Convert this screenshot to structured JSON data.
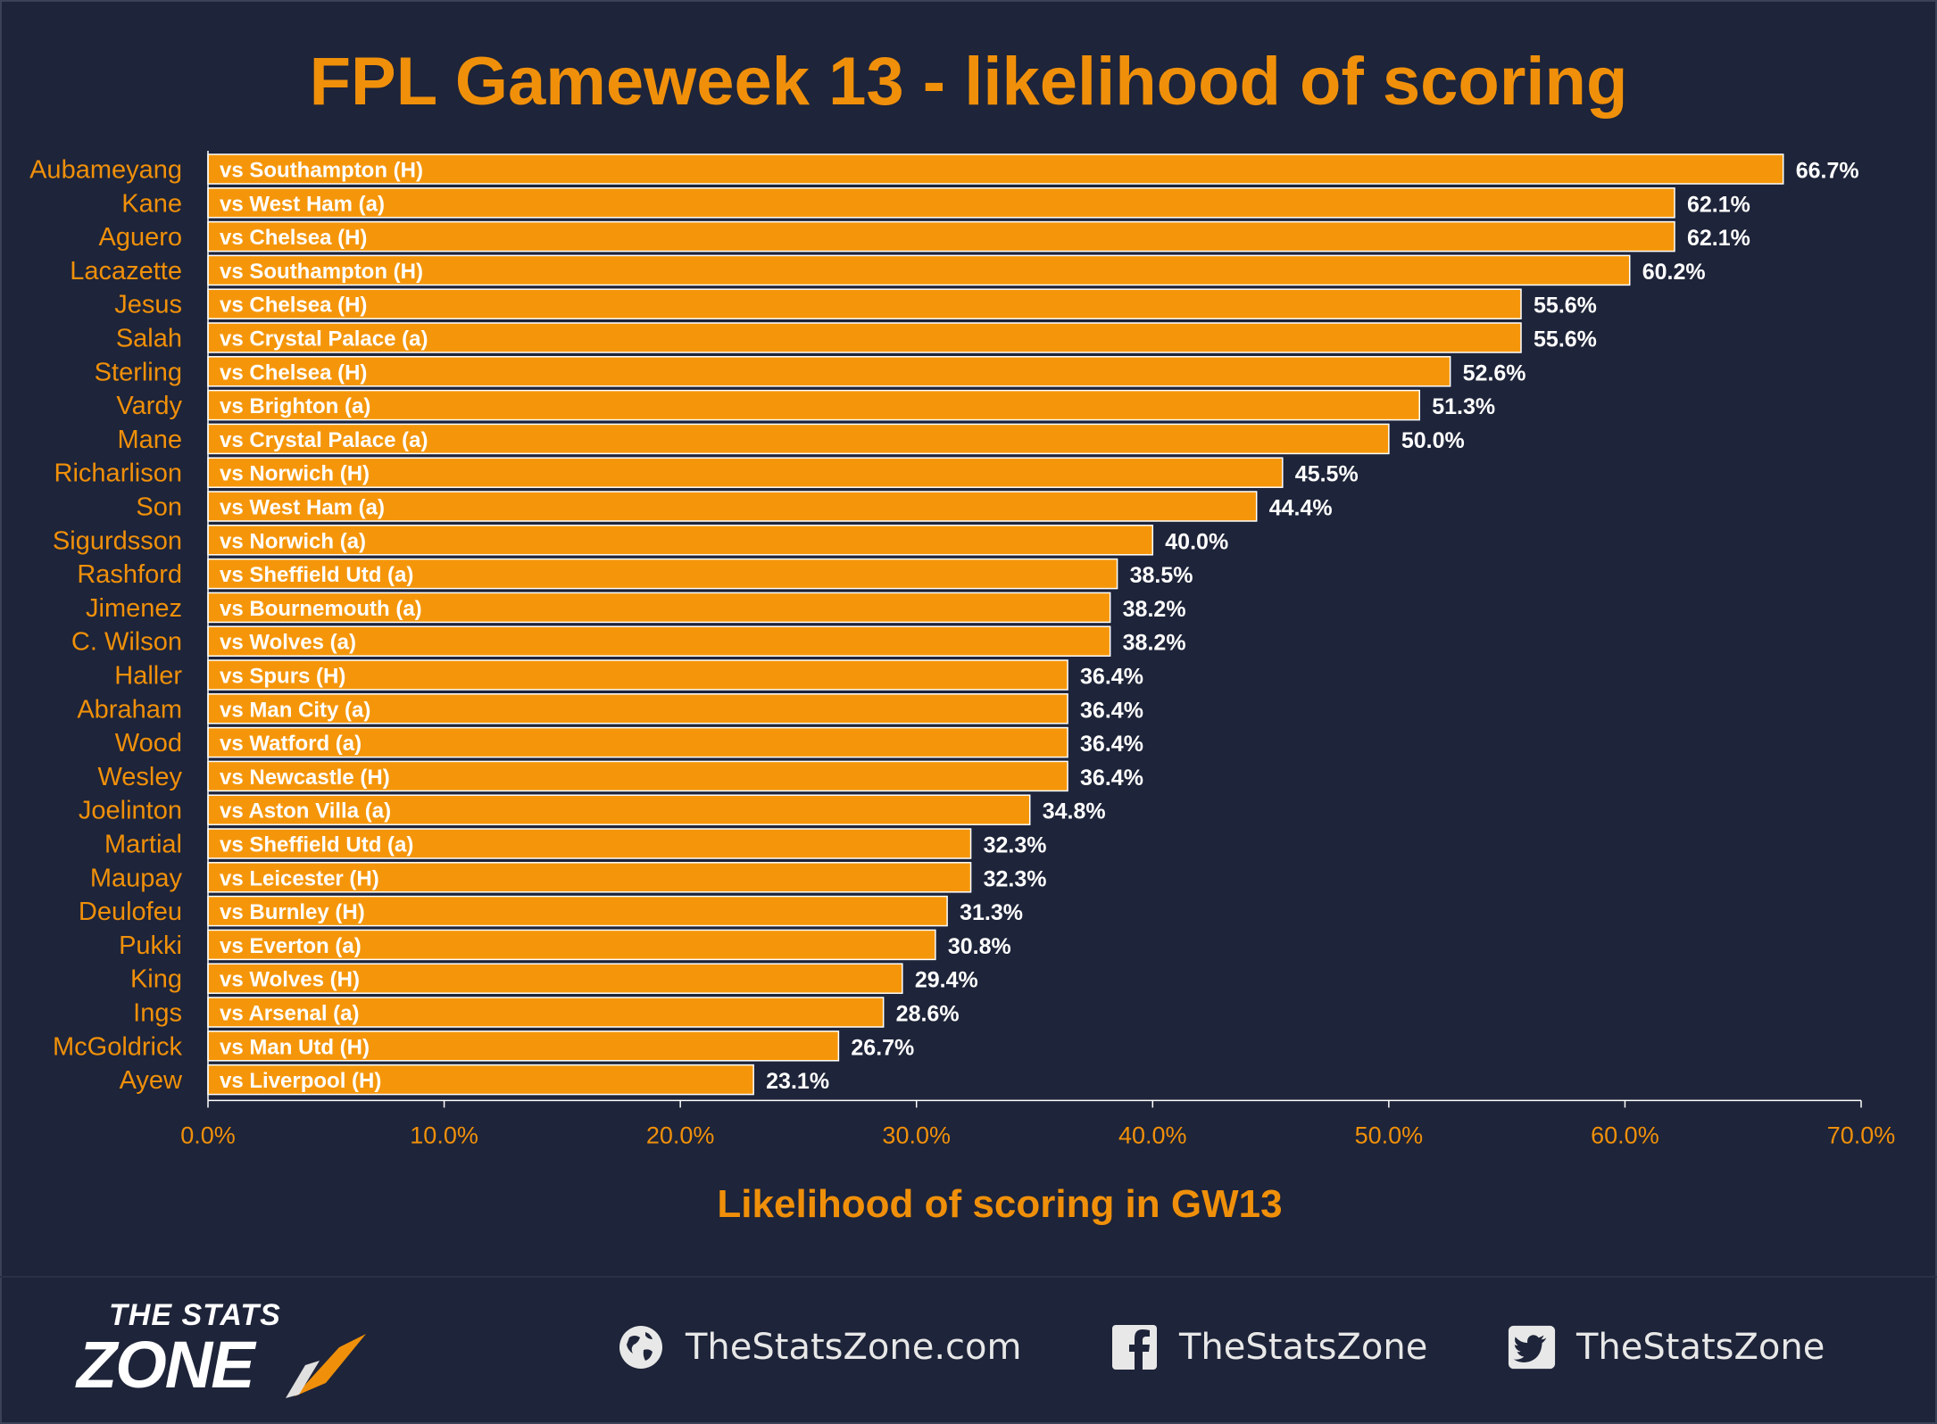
{
  "title": "FPL Gameweek 13 - likelihood of scoring",
  "chart_data": {
    "type": "bar",
    "orientation": "horizontal",
    "title": "FPL Gameweek 13 - likelihood of scoring",
    "xlabel": "Likelihood of scoring in GW13",
    "xlim": [
      0,
      70
    ],
    "xticks": [
      "0.0%",
      "10.0%",
      "20.0%",
      "30.0%",
      "40.0%",
      "50.0%",
      "60.0%",
      "70.0%"
    ],
    "grid": false,
    "bar_color": "#f5960a",
    "categories": [
      "Aubameyang",
      "Kane",
      "Aguero",
      "Lacazette",
      "Jesus",
      "Salah",
      "Sterling",
      "Vardy",
      "Mane",
      "Richarlison",
      "Son",
      "Sigurdsson",
      "Rashford",
      "Jimenez",
      "C. Wilson",
      "Haller",
      "Abraham",
      "Wood",
      "Wesley",
      "Joelinton",
      "Martial",
      "Maupay",
      "Deulofeu",
      "Pukki",
      "King",
      "Ings",
      "McGoldrick",
      "Ayew"
    ],
    "bar_labels": [
      "vs Southampton (H)",
      "vs West Ham (a)",
      "vs Chelsea (H)",
      "vs Southampton (H)",
      "vs Chelsea (H)",
      "vs Crystal Palace (a)",
      "vs Chelsea (H)",
      "vs Brighton (a)",
      "vs Crystal Palace (a)",
      "vs Norwich (H)",
      "vs West Ham (a)",
      "vs Norwich (a)",
      "vs Sheffield Utd (a)",
      "vs Bournemouth (a)",
      "vs Wolves (a)",
      "vs Spurs (H)",
      "vs Man City (a)",
      "vs Watford (a)",
      "vs Newcastle (H)",
      "vs Aston Villa (a)",
      "vs Sheffield Utd (a)",
      "vs Leicester (H)",
      "vs Burnley (H)",
      "vs Everton (a)",
      "vs Wolves (H)",
      "vs Arsenal (a)",
      "vs Man Utd (H)",
      "vs Liverpool (H)"
    ],
    "values": [
      66.7,
      62.1,
      62.1,
      60.2,
      55.6,
      55.6,
      52.6,
      51.3,
      50.0,
      45.5,
      44.4,
      40.0,
      38.5,
      38.2,
      38.2,
      36.4,
      36.4,
      36.4,
      36.4,
      34.8,
      32.3,
      32.3,
      31.3,
      30.8,
      29.4,
      28.6,
      26.7,
      23.1
    ],
    "value_labels": [
      "66.7%",
      "62.1%",
      "62.1%",
      "60.2%",
      "55.6%",
      "55.6%",
      "52.6%",
      "51.3%",
      "50.0%",
      "45.5%",
      "44.4%",
      "40.0%",
      "38.5%",
      "38.2%",
      "38.2%",
      "36.4%",
      "36.4%",
      "36.4%",
      "36.4%",
      "34.8%",
      "32.3%",
      "32.3%",
      "31.3%",
      "30.8%",
      "29.4%",
      "28.6%",
      "26.7%",
      "23.1%"
    ]
  },
  "footer": {
    "logo_top": "THE STATS",
    "logo_bottom": "ZONE",
    "website": "TheStatsZone.com",
    "facebook": "TheStatsZone",
    "twitter": "TheStatsZone",
    "icons": [
      "globe-icon",
      "facebook-icon",
      "twitter-icon"
    ]
  },
  "colors": {
    "background": "#1e2439",
    "accent": "#f0900a",
    "bar": "#f5960a",
    "text": "#ffffff"
  }
}
